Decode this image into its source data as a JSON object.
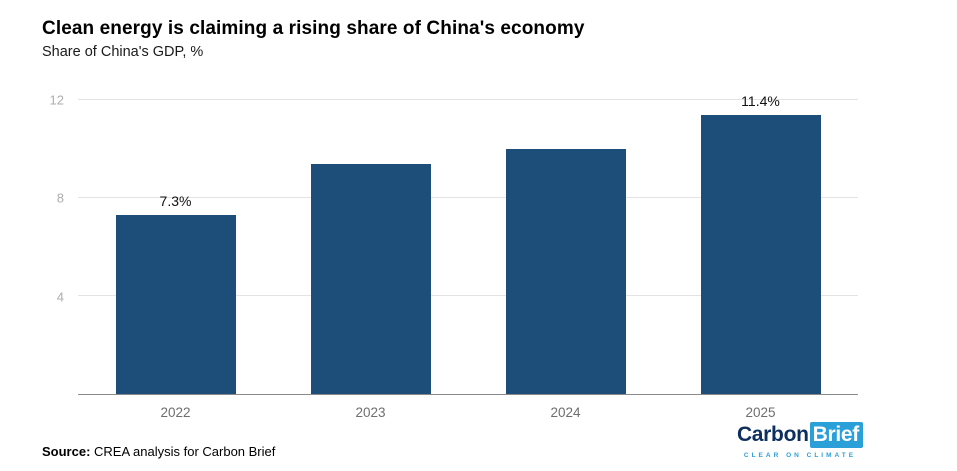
{
  "header": {
    "title": "Clean energy is claiming a rising share of China's economy",
    "subtitle": "Share of China's GDP, %"
  },
  "chart_data": {
    "type": "bar",
    "title": "Clean energy is claiming a rising share of China's economy",
    "subtitle": "Share of China's GDP, %",
    "categories": [
      "2022",
      "2023",
      "2024",
      "2025"
    ],
    "values": [
      7.3,
      9.4,
      10.0,
      11.4
    ],
    "data_labels": [
      "7.3%",
      "",
      "",
      "11.4%"
    ],
    "ylim": [
      0,
      12
    ],
    "yticks": [
      4,
      8,
      12
    ],
    "grid": true,
    "legend_position": "none",
    "bar_color": "#1d4e79",
    "xlabel": "",
    "ylabel": "Share of China's GDP, %"
  },
  "footer": {
    "source_label": "Source:",
    "source_text": " CREA analysis for Carbon Brief",
    "logo": {
      "part1": "Carbon",
      "part2": "Brief",
      "tagline": "CLEAR ON CLIMATE"
    },
    "logo_colors": {
      "navy": "#0d2f5e",
      "blue": "#2a9fd8"
    }
  }
}
